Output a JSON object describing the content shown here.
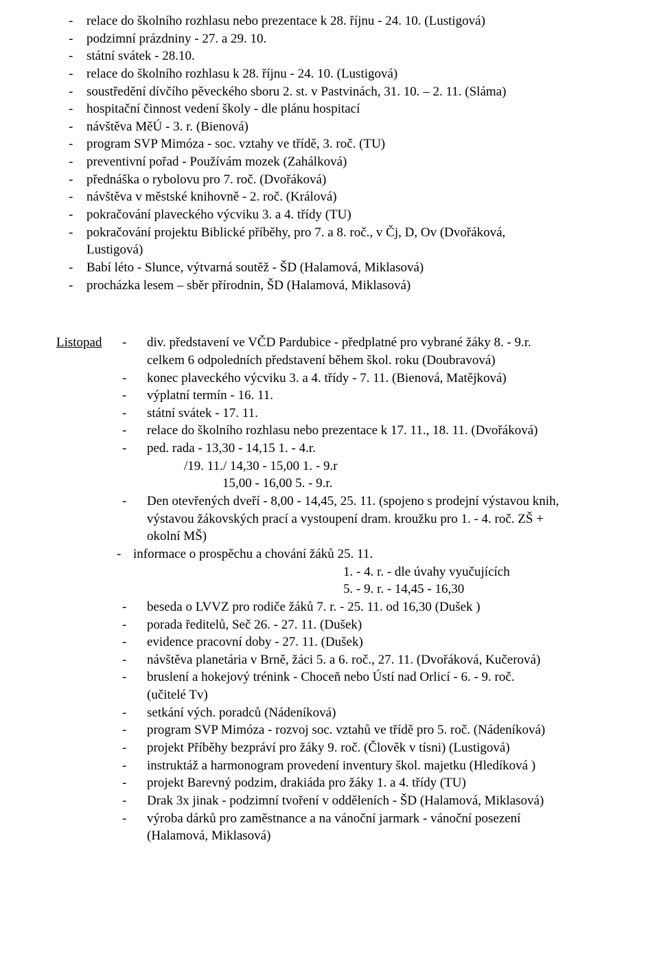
{
  "section1": {
    "items": [
      {
        "text": "relace do školního rozhlasu nebo prezentace k 28. říjnu - 24. 10. (Lustigová)"
      },
      {
        "text": "podzimní prázdniny - 27. a 29. 10."
      },
      {
        "text": "státní svátek - 28.10."
      },
      {
        "text": "relace do školního rozhlasu k 28. říjnu - 24. 10. (Lustigová)"
      },
      {
        "text": "soustředění dívčího pěveckého sboru 2. st. v Pastvinách, 31. 10. – 2. 11. (Sláma)"
      },
      {
        "text": "hospitační činnost vedení školy - dle plánu hospitací"
      },
      {
        "text": "návštěva MěÚ - 3. r. (Bienová)"
      },
      {
        "text": "program SVP Mimóza - soc. vztahy ve třídě, 3. roč. (TU)"
      },
      {
        "text": "preventivní pořad - Používám mozek (Zahálková)"
      },
      {
        "text": "přednáška o rybolovu pro 7. roč. (Dvořáková)"
      },
      {
        "text": "návštěva v městské knihovně - 2. roč. (Králová)"
      },
      {
        "text": "pokračování plaveckého výcviku 3. a 4. třídy (TU)"
      },
      {
        "text": "pokračování projektu Biblické příběhy, pro 7. a 8. roč., v Čj, D, Ov (Dvořáková, Lustigová)",
        "wrap": true,
        "line1": "pokračování projektu Biblické příběhy, pro 7. a 8. roč., v Čj, D, Ov (Dvořáková,",
        "line2": "Lustigová)"
      },
      {
        "text": "Babí léto - Slunce, výtvarná soutěž - ŠD (Halamová, Miklasová)"
      },
      {
        "text": "procházka lesem – sběr přírodnin, ŠD (Halamová, Miklasová)"
      }
    ]
  },
  "section2": {
    "month": "Listopad",
    "items": [
      {
        "first": "div. představení ve VČD Pardubice - předplatné pro vybrané žáky 8. - 9.r.",
        "cont": [
          "celkem 6 odpoledních  představení během  škol. roku (Doubravová)"
        ]
      },
      {
        "first": "konec plaveckého výcviku 3. a 4. třídy - 7. 11. (Bienová, Matějková)"
      },
      {
        "first": "výplatní termín - 16. 11."
      },
      {
        "first": "státní svátek - 17. 11."
      },
      {
        "first": "relace do školního rozhlasu nebo prezentace k 17. 11., 18. 11. (Dvořáková)"
      },
      {
        "first": "ped. rada  -   13,30 - 14,15  1. - 4.r.",
        "sublines": [
          {
            "text": "/19. 11./   14,30 - 15,00  1. - 9.r",
            "class": "sub-indent-1"
          },
          {
            "text": "15,00 - 16,00  5. - 9.r.",
            "class": "sub-indent-3"
          }
        ]
      },
      {
        "first": "Den otevřených dveří - 8,00 - 14,45,  25. 11. (spojeno s prodejní výstavou knih,",
        "cont": [
          "výstavou žákovských prací a vystoupení dram. kroužku pro 1. - 4. roč. ZŠ +",
          "okolní MŠ)"
        ]
      },
      {
        "first": "informace o prospěchu a chování žáků 25. 11.",
        "inset": true,
        "sublines": [
          {
            "text": "1. -  4. r.  - dle úvahy vyučujících",
            "class": "center-sub1"
          },
          {
            "text": "5. -  9. r.  - 14,45 - 16,30",
            "class": "center-sub2"
          }
        ]
      },
      {
        "first": "beseda o LVVZ pro rodiče žáků 7. r. - 25. 11. od 16,30 (Dušek )"
      },
      {
        "first": "porada ředitelů, Seč 26. - 27. 11. (Dušek)"
      },
      {
        "first": "evidence pracovní doby - 27. 11. (Dušek)"
      },
      {
        "first": "návštěva planetária v Brně, žáci 5. a 6. roč., 27. 11. (Dvořáková, Kučerová)"
      },
      {
        "first": "bruslení a hokejový trénink - Choceň nebo Ústí nad Orlicí - 6. - 9. roč.",
        "cont": [
          "(učitelé Tv)"
        ]
      },
      {
        "first": "setkání vých. poradců (Nádeníková)"
      },
      {
        "first": "program SVP Mimóza  - rozvoj soc. vztahů ve třídě pro 5. roč. (Nádeníková)"
      },
      {
        "first": "projekt Příběhy bezpráví pro žáky 9. roč. (Člověk v tísni) (Lustigová)"
      },
      {
        "first": "instruktáž a harmonogram provedení  inventury škol. majetku (Hledíková )"
      },
      {
        "first": "projekt Barevný podzim, drakiáda pro žáky 1. a 4. třídy (TU)"
      },
      {
        "first": "Drak 3x jinak - podzimní tvoření v odděleních - ŠD (Halamová, Miklasová)"
      },
      {
        "first": "výroba dárků pro zaměstnance a na vánoční jarmark - vánoční posezení",
        "cont": [
          "(Halamová, Miklasová)"
        ]
      }
    ]
  },
  "dash": "-"
}
